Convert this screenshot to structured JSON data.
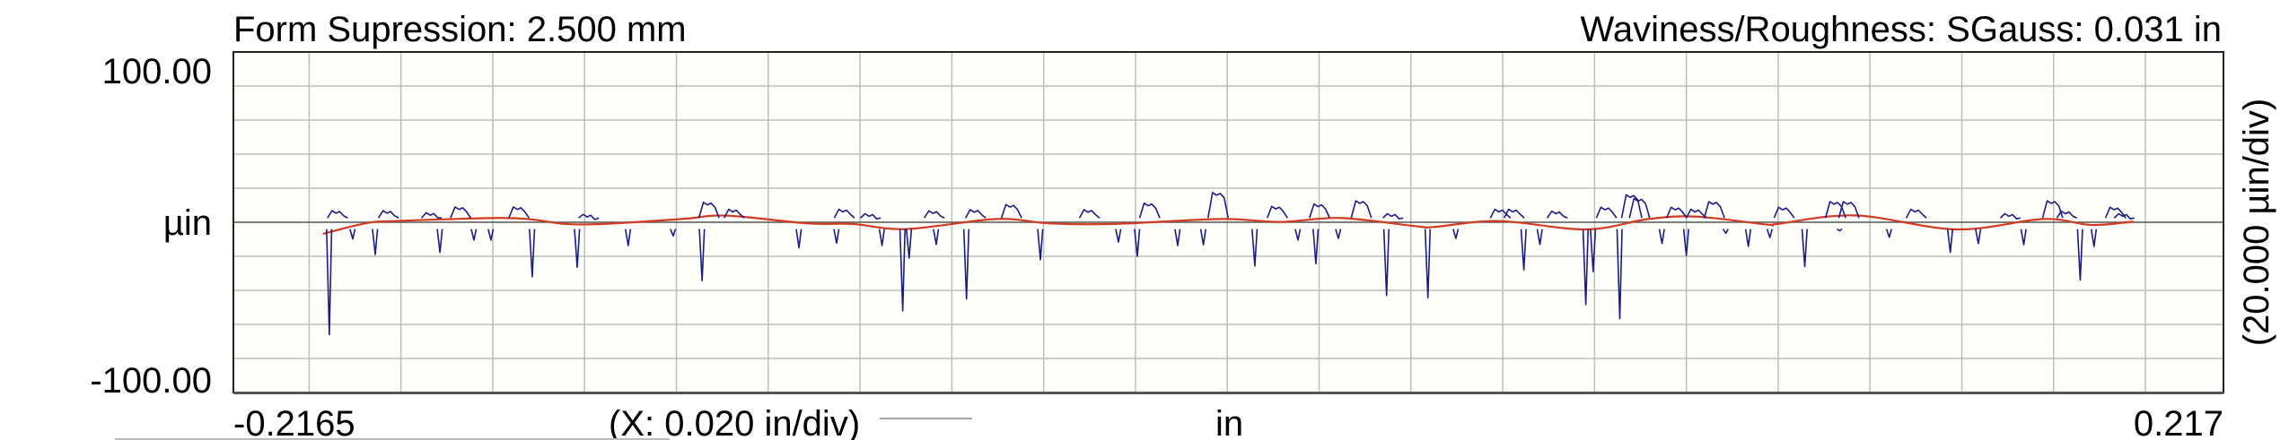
{
  "header": {
    "left_title": "Form Supression: 2.500 mm",
    "right_title": "Waviness/Roughness: SGauss: 0.031 in"
  },
  "chart_data": {
    "type": "line",
    "title": "",
    "xlabel": "in",
    "x_scale_label": "(X: 0.020 in/div)",
    "ylabel": "µin",
    "y_scale_label": "(20.000 µin/div)",
    "xlim": [
      -0.2165,
      0.217
    ],
    "ylim": [
      -100,
      100
    ],
    "x_tick_labels": [
      "-0.2165",
      "0.217"
    ],
    "y_tick_labels": [
      "100.00",
      "-100.00"
    ],
    "x_grid_step": 0.02,
    "y_grid_step": 20,
    "grid": true,
    "colors": {
      "background": "#fefefa",
      "grid": "#bdbdbd",
      "zero_line": "#555555",
      "roughness": "#1c1c84",
      "waviness": "#d33a22"
    },
    "series": [
      {
        "role": "waviness",
        "x": [
          -0.197,
          -0.1878,
          -0.1813,
          -0.1592,
          -0.1514,
          -0.1442,
          -0.1358,
          -0.1188,
          -0.109,
          -0.0914,
          -0.0816,
          -0.0699,
          -0.0503,
          -0.0386,
          -0.0243,
          -0.0015,
          0.0117,
          0.0246,
          0.0416,
          0.0449,
          0.0592,
          0.0781,
          0.0918,
          0.1022,
          0.1178,
          0.1198,
          0.1368,
          0.1589,
          0.1778,
          0.1882,
          0.1974
        ],
        "y": [
          -6.8,
          -0.7,
          0.7,
          2.5,
          1.6,
          -1.0,
          -1.0,
          1.9,
          3.9,
          -0.7,
          -1.0,
          -4.0,
          1.9,
          -0.7,
          -1.0,
          1.9,
          0.2,
          2.5,
          -2.5,
          -2.8,
          0.7,
          -4.2,
          1.9,
          3.3,
          -1.4,
          -1.0,
          4.0,
          -4.2,
          1.9,
          -1.6,
          0.4
        ]
      },
      {
        "role": "roughness",
        "x": [
          -0.1956,
          -0.1938,
          -0.1905,
          -0.1856,
          -0.1827,
          -0.1733,
          -0.1715,
          -0.167,
          -0.1641,
          -0.1604,
          -0.1543,
          -0.1514,
          -0.1416,
          -0.1391,
          -0.1305,
          -0.1207,
          -0.1144,
          -0.1129,
          -0.1074,
          -0.0933,
          -0.0851,
          -0.0834,
          -0.0777,
          -0.0752,
          -0.0707,
          -0.0693,
          -0.0638,
          -0.0634,
          -0.0568,
          -0.0548,
          -0.047,
          -0.0407,
          -0.03,
          -0.0237,
          -0.0196,
          -0.0169,
          -0.0108,
          -0.0052,
          -0.002,
          0.006,
          0.0109,
          0.0154,
          0.0193,
          0.0201,
          0.0242,
          0.0292,
          0.0347,
          0.0361,
          0.0437,
          0.0498,
          0.0595,
          0.0625,
          0.0646,
          0.0681,
          0.0719,
          0.0781,
          0.0797,
          0.0826,
          0.0855,
          0.0881,
          0.0898,
          0.0947,
          0.0979,
          0.1,
          0.1022,
          0.1061,
          0.1086,
          0.1135,
          0.1182,
          0.1213,
          0.1258,
          0.1325,
          0.1334,
          0.1354,
          0.1442,
          0.1501,
          0.1575,
          0.1636,
          0.1706,
          0.1735,
          0.1798,
          0.1829,
          0.1858,
          0.1888,
          0.1935,
          0.1954
        ],
        "y": [
          -66,
          6.8,
          -9.8,
          -19,
          6.8,
          5.6,
          -17.7,
          9,
          -10.5,
          -10.5,
          9,
          -32,
          -26.5,
          4.6,
          -13.7,
          -8,
          -34.4,
          11.7,
          7.6,
          -15,
          -12.3,
          7.6,
          5,
          -13.7,
          -52,
          -21,
          6.7,
          -13,
          -45,
          7.4,
          10.4,
          -22,
          7.4,
          -11.6,
          -20,
          11.2,
          -13.7,
          -13.2,
          17.4,
          -25.6,
          9.3,
          -10.5,
          -24.4,
          10.7,
          -9.5,
          12.6,
          -43,
          5,
          -44.4,
          -9.5,
          7.6,
          7.6,
          -28,
          -13,
          6.5,
          -48.4,
          -29,
          8.8,
          -56.7,
          16.1,
          13.9,
          -12.5,
          8.8,
          -19.5,
          7.6,
          12.1,
          -6.5,
          -14.2,
          -9,
          8.8,
          -26,
          12.1,
          -5,
          12.1,
          -8.8,
          7.6,
          -17.7,
          -12.5,
          5,
          -13.2,
          12.6,
          6.5,
          -34,
          -14.2,
          8.8,
          5
        ]
      }
    ]
  }
}
